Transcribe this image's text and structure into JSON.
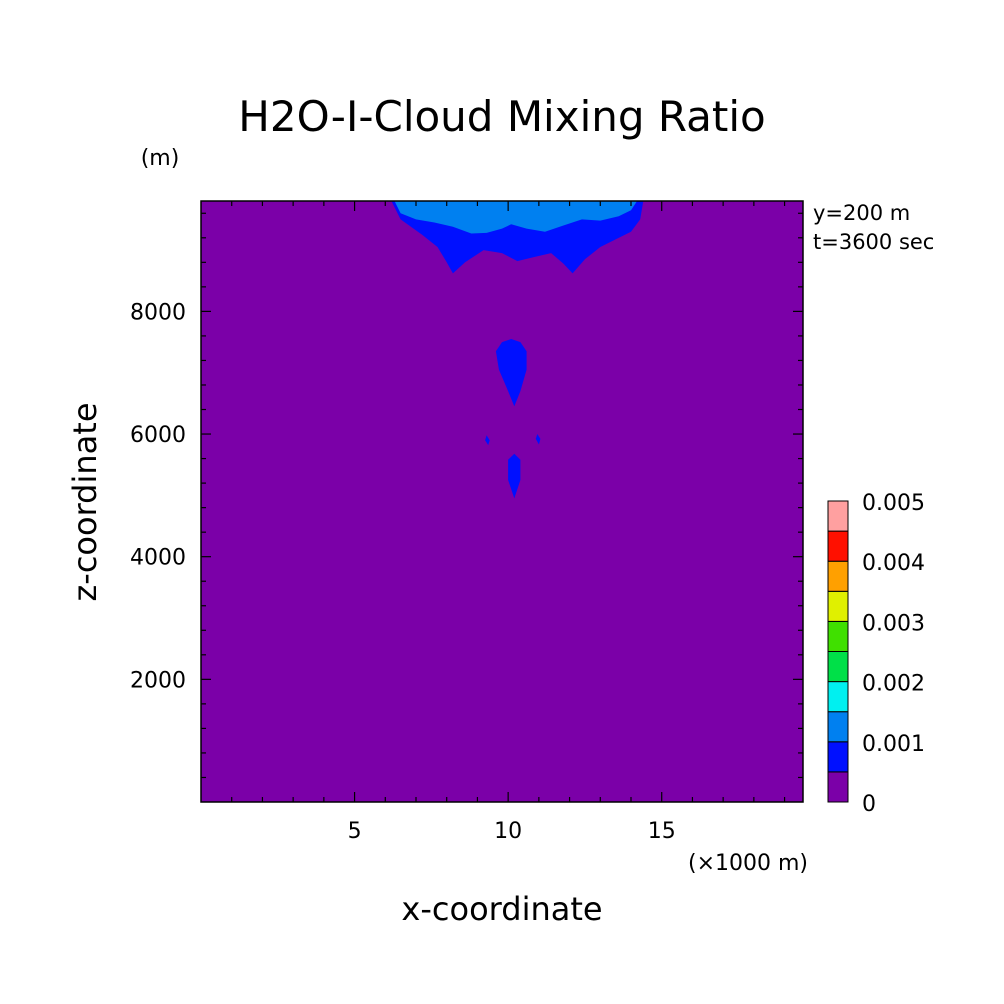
{
  "chart_data": {
    "type": "contour",
    "title": "H2O-I-Cloud Mixing Ratio",
    "xlabel": "x-coordinate",
    "ylabel": "z-coordinate",
    "x_unit": "(×1000 m)",
    "y_unit": "(m)",
    "xlim": [
      0,
      19.6
    ],
    "ylim": [
      0,
      9800
    ],
    "x_ticks": [
      5,
      10,
      15
    ],
    "y_ticks": [
      2000,
      4000,
      6000,
      8000
    ],
    "x_minor_step": 1,
    "y_minor_step": 400,
    "annotations": [
      "y=200 m",
      "t=3600 sec"
    ],
    "colorbar": {
      "levels": [
        0,
        0.0005,
        0.001,
        0.0015,
        0.002,
        0.0025,
        0.003,
        0.0035,
        0.004,
        0.0045,
        0.005
      ],
      "colors": [
        "#7b00a8",
        "#0010ff",
        "#0080f0",
        "#00f0f0",
        "#00e048",
        "#40e000",
        "#e0f000",
        "#ffa000",
        "#ff1000",
        "#ffa0a0"
      ],
      "tick_labels": [
        "0",
        "0.001",
        "0.002",
        "0.003",
        "0.004",
        "0.005"
      ],
      "tick_values": [
        0,
        0.001,
        0.002,
        0.003,
        0.004,
        0.005
      ]
    },
    "regions": [
      {
        "level": "0.0005-0.001",
        "color": "#0010ff",
        "polygon": [
          [
            6.2,
            9800
          ],
          [
            6.5,
            9500
          ],
          [
            7.2,
            9250
          ],
          [
            7.7,
            9050
          ],
          [
            8.0,
            8800
          ],
          [
            8.2,
            8620
          ],
          [
            8.6,
            8800
          ],
          [
            9.2,
            9000
          ],
          [
            9.8,
            8950
          ],
          [
            10.3,
            8820
          ],
          [
            10.8,
            8880
          ],
          [
            11.4,
            8950
          ],
          [
            11.8,
            8780
          ],
          [
            12.1,
            8620
          ],
          [
            12.5,
            8850
          ],
          [
            13.0,
            9050
          ],
          [
            13.4,
            9150
          ],
          [
            14.0,
            9300
          ],
          [
            14.3,
            9500
          ],
          [
            14.4,
            9800
          ]
        ]
      },
      {
        "level": "0.001-0.0015",
        "color": "#0080f0",
        "polygon": [
          [
            6.3,
            9800
          ],
          [
            6.5,
            9600
          ],
          [
            7.0,
            9500
          ],
          [
            7.6,
            9450
          ],
          [
            8.2,
            9380
          ],
          [
            8.8,
            9270
          ],
          [
            9.3,
            9280
          ],
          [
            9.8,
            9350
          ],
          [
            10.1,
            9420
          ],
          [
            10.6,
            9350
          ],
          [
            11.2,
            9300
          ],
          [
            11.8,
            9400
          ],
          [
            12.4,
            9500
          ],
          [
            13.0,
            9480
          ],
          [
            13.6,
            9550
          ],
          [
            14.0,
            9650
          ],
          [
            14.2,
            9800
          ]
        ]
      },
      {
        "level": "0.0005-0.001",
        "color": "#0010ff",
        "polygon": [
          [
            10.1,
            7550
          ],
          [
            10.4,
            7500
          ],
          [
            10.6,
            7350
          ],
          [
            10.6,
            7050
          ],
          [
            10.4,
            6700
          ],
          [
            10.2,
            6450
          ],
          [
            10.0,
            6700
          ],
          [
            9.7,
            7050
          ],
          [
            9.6,
            7350
          ],
          [
            9.8,
            7500
          ]
        ]
      },
      {
        "level": "0.0005-0.001",
        "color": "#0010ff",
        "polygon": [
          [
            10.2,
            5680
          ],
          [
            10.4,
            5580
          ],
          [
            10.4,
            5250
          ],
          [
            10.2,
            4950
          ],
          [
            10.0,
            5250
          ],
          [
            10.0,
            5580
          ]
        ]
      },
      {
        "level": "0.0005-0.001",
        "color": "#0010ff",
        "polygon": [
          [
            9.3,
            5980
          ],
          [
            9.4,
            5900
          ],
          [
            9.35,
            5820
          ],
          [
            9.25,
            5900
          ]
        ]
      },
      {
        "level": "0.0005-0.001",
        "color": "#0010ff",
        "polygon": [
          [
            10.95,
            6000
          ],
          [
            11.05,
            5920
          ],
          [
            11.0,
            5830
          ],
          [
            10.9,
            5920
          ]
        ]
      }
    ]
  }
}
